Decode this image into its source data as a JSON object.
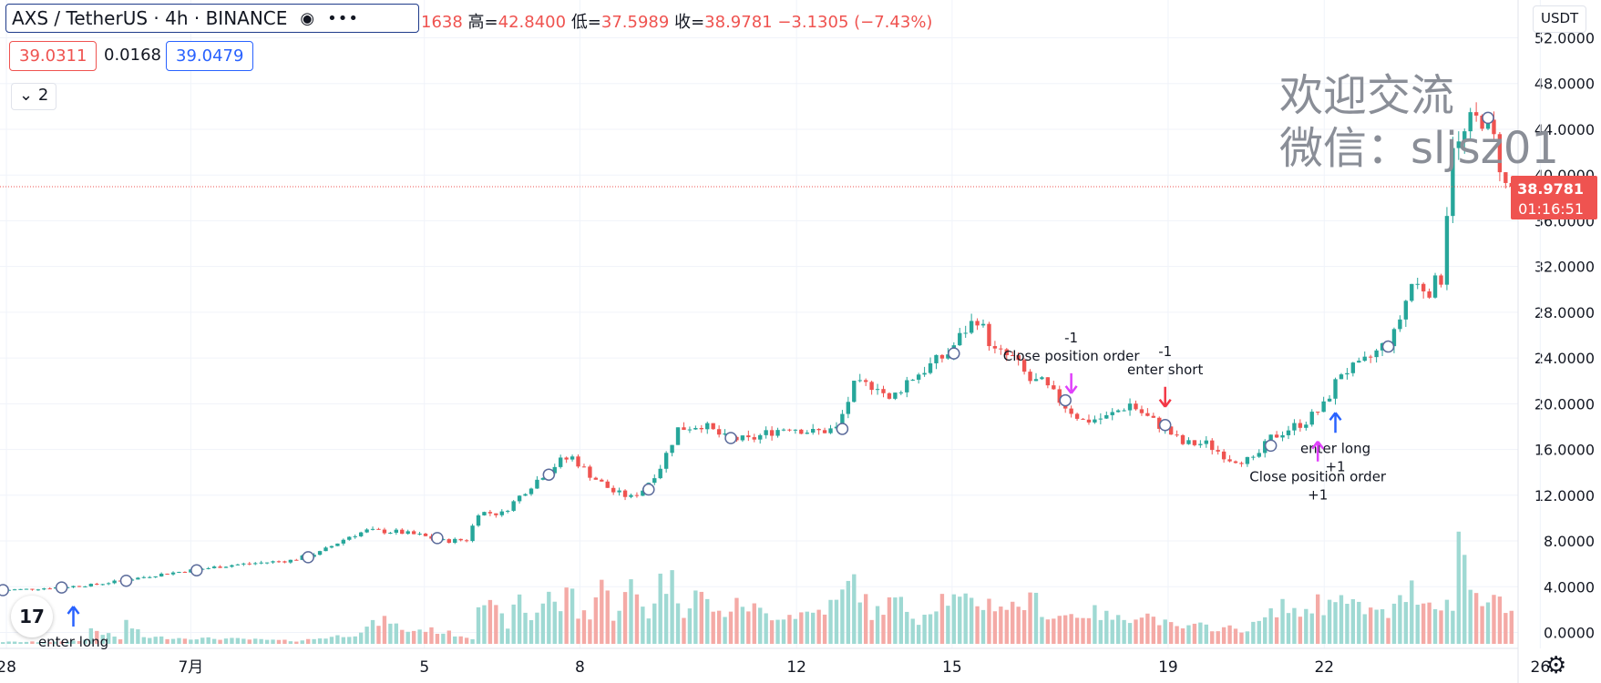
{
  "header": {
    "symbol": "AXS / TetherUS · 4h · BINANCE",
    "eye_icon": "eye-icon",
    "more_icon": "more-dots-icon",
    "ohlc_prefix": "1638",
    "high_label": "高=",
    "high": "42.8400",
    "low_label": "低=",
    "low": "37.5989",
    "close_label": "收=",
    "close": "38.9781",
    "change": "−3.1305 (−7.43%)"
  },
  "prices": {
    "bid": "39.0311",
    "spread": "0.0168",
    "ask": "39.0479"
  },
  "collapse": {
    "icon": "chevron-down-icon",
    "count": "2"
  },
  "axis": {
    "currency": "USDT"
  },
  "watermark": {
    "line1": "欢迎交流",
    "line2": "微信：sljsz01"
  },
  "last_price": {
    "price": "38.9781",
    "countdown": "01:16:51"
  },
  "colors": {
    "up": "#26a69a",
    "down": "#ef5350",
    "up_vol": "#9fd9d3",
    "down_vol": "#f4aaa6",
    "marker_blue": "#2962ff",
    "marker_magenta": "#e040fb",
    "marker_red": "#f23645"
  },
  "chart_data": {
    "type": "candlestick",
    "ylim": [
      -1,
      53
    ],
    "y_ticks": [
      "52.0000",
      "48.0000",
      "44.0000",
      "40.0000",
      "36.0000",
      "32.0000",
      "28.0000",
      "24.0000",
      "20.0000",
      "16.0000",
      "12.0000",
      "8.0000",
      "4.0000",
      "0.0000"
    ],
    "x_ticks": [
      {
        "label": "28",
        "x": 0.6
      },
      {
        "label": "7月",
        "x": 32
      },
      {
        "label": "5",
        "x": 71.8
      },
      {
        "label": "8",
        "x": 98.3
      },
      {
        "label": "12",
        "x": 135.2
      },
      {
        "label": "15",
        "x": 161.7
      },
      {
        "label": "19",
        "x": 198.5
      },
      {
        "label": "22",
        "x": 225.1
      },
      {
        "label": "26",
        "x": 261.9
      }
    ],
    "price_path": [
      [
        0,
        3.7
      ],
      [
        6,
        3.8
      ],
      [
        12,
        4.0
      ],
      [
        17,
        4.2
      ],
      [
        22,
        4.6
      ],
      [
        28,
        5.1
      ],
      [
        34,
        5.5
      ],
      [
        40,
        5.9
      ],
      [
        45,
        6.1
      ],
      [
        50,
        6.3
      ],
      [
        55,
        7.0
      ],
      [
        60,
        8.4
      ],
      [
        63,
        8.9
      ],
      [
        68,
        8.8
      ],
      [
        72,
        8.5
      ],
      [
        76,
        8.0
      ],
      [
        80,
        8.1
      ],
      [
        82,
        10.5
      ],
      [
        86,
        10.4
      ],
      [
        90,
        12.4
      ],
      [
        93,
        13.8
      ],
      [
        96,
        15.0
      ],
      [
        98,
        15.3
      ],
      [
        101,
        13.8
      ],
      [
        105,
        12.3
      ],
      [
        108,
        11.8
      ],
      [
        110,
        12.5
      ],
      [
        113,
        14.5
      ],
      [
        116,
        17.8
      ],
      [
        120,
        18.2
      ],
      [
        124,
        17.0
      ],
      [
        128,
        16.8
      ],
      [
        132,
        17.6
      ],
      [
        135,
        18.0
      ],
      [
        139,
        17.5
      ],
      [
        143,
        17.8
      ],
      [
        146,
        21.5
      ],
      [
        150,
        21.7
      ],
      [
        152,
        20.2
      ],
      [
        155,
        22.0
      ],
      [
        158,
        23.0
      ],
      [
        162,
        24.4
      ],
      [
        165,
        26.5
      ],
      [
        167,
        27.5
      ],
      [
        170,
        24.5
      ],
      [
        173,
        24.0
      ],
      [
        176,
        22.0
      ],
      [
        178,
        21.8
      ],
      [
        182,
        19.8
      ],
      [
        185,
        18.5
      ],
      [
        189,
        18.8
      ],
      [
        193,
        20.0
      ],
      [
        196,
        18.8
      ],
      [
        199,
        17.8
      ],
      [
        202,
        16.5
      ],
      [
        206,
        16.5
      ],
      [
        210,
        15.2
      ],
      [
        214,
        15.0
      ],
      [
        217,
        17.0
      ],
      [
        220,
        17.8
      ],
      [
        223,
        18.5
      ],
      [
        226,
        19.8
      ],
      [
        229,
        22.8
      ],
      [
        232,
        23.2
      ],
      [
        235,
        24.5
      ],
      [
        238,
        26.0
      ],
      [
        241,
        30.5
      ],
      [
        244,
        30.0
      ],
      [
        246,
        31.0
      ],
      [
        248,
        43.0
      ],
      [
        249,
        42.5
      ],
      [
        251,
        44.5
      ],
      [
        253,
        45.0
      ],
      [
        255,
        43.0
      ],
      [
        256,
        41.0
      ],
      [
        257,
        38.98
      ]
    ],
    "volume_path": [
      [
        0,
        0.2
      ],
      [
        10,
        0.2
      ],
      [
        14,
        0.4
      ],
      [
        15,
        1.6
      ],
      [
        18,
        0.9
      ],
      [
        20,
        0.5
      ],
      [
        21,
        2.2
      ],
      [
        24,
        0.7
      ],
      [
        30,
        0.6
      ],
      [
        40,
        0.5
      ],
      [
        50,
        0.3
      ],
      [
        60,
        1.0
      ],
      [
        63,
        2.0
      ],
      [
        66,
        2.5
      ],
      [
        68,
        1.3
      ],
      [
        72,
        1.5
      ],
      [
        76,
        1.1
      ],
      [
        80,
        0.6
      ],
      [
        81,
        5.0
      ],
      [
        86,
        2.0
      ],
      [
        88,
        4.6
      ],
      [
        90,
        2.4
      ],
      [
        93,
        5.6
      ],
      [
        95,
        3.0
      ],
      [
        96,
        6.6
      ],
      [
        98,
        3.0
      ],
      [
        100,
        3.2
      ],
      [
        102,
        6.6
      ],
      [
        104,
        3.0
      ],
      [
        107,
        5.8
      ],
      [
        110,
        3.0
      ],
      [
        112,
        6.5
      ],
      [
        114,
        6.4
      ],
      [
        116,
        3.5
      ],
      [
        118,
        5.5
      ],
      [
        122,
        3.0
      ],
      [
        126,
        4.2
      ],
      [
        130,
        3.0
      ],
      [
        134,
        3.0
      ],
      [
        138,
        3.2
      ],
      [
        142,
        4.2
      ],
      [
        145,
        6.7
      ],
      [
        148,
        3.0
      ],
      [
        152,
        4.5
      ],
      [
        156,
        2.6
      ],
      [
        160,
        4.8
      ],
      [
        164,
        4.2
      ],
      [
        168,
        4.2
      ],
      [
        172,
        3.8
      ],
      [
        176,
        4.5
      ],
      [
        178,
        2.8
      ],
      [
        182,
        3.0
      ],
      [
        186,
        3.2
      ],
      [
        190,
        2.5
      ],
      [
        194,
        3.2
      ],
      [
        198,
        2.1
      ],
      [
        200,
        1.6
      ],
      [
        204,
        1.8
      ],
      [
        208,
        1.6
      ],
      [
        212,
        1.5
      ],
      [
        216,
        3.0
      ],
      [
        218,
        4.2
      ],
      [
        220,
        3.0
      ],
      [
        222,
        3.5
      ],
      [
        224,
        4.4
      ],
      [
        225,
        3.0
      ],
      [
        226,
        5.8
      ],
      [
        229,
        4.0
      ],
      [
        232,
        3.5
      ],
      [
        236,
        3.0
      ],
      [
        240,
        5.6
      ],
      [
        243,
        4.2
      ],
      [
        246,
        4.5
      ],
      [
        247,
        3.0
      ],
      [
        248,
        13.2
      ],
      [
        250,
        5.4
      ],
      [
        252,
        5.0
      ],
      [
        254,
        5.0
      ],
      [
        255,
        4.0
      ],
      [
        257,
        2.8
      ]
    ],
    "signals": [
      {
        "label": "enter long",
        "sub": "",
        "x": 12,
        "type": "long"
      },
      {
        "label": "Close position order",
        "sub": "-1",
        "x": 182,
        "type": "close_short"
      },
      {
        "label": "enter short",
        "sub": "-1",
        "x": 198,
        "type": "short"
      },
      {
        "label": "enter long",
        "sub": "+1",
        "x": 227,
        "type": "long"
      },
      {
        "label": "Close position order",
        "sub": "+1",
        "x": 224,
        "type": "close_long"
      }
    ]
  }
}
